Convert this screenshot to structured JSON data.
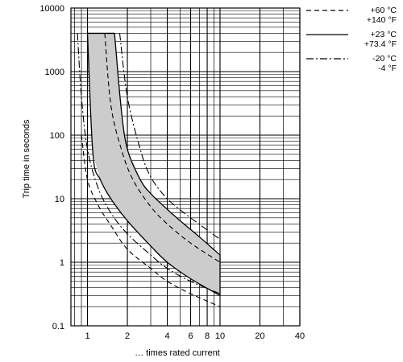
{
  "chart_data": {
    "type": "line",
    "xlabel": "… times rated current",
    "ylabel": "Trip time in seconds",
    "x_scale": "log",
    "y_scale": "log",
    "xlim": [
      0.75,
      40
    ],
    "ylim": [
      0.1,
      10000
    ],
    "grid": true,
    "x_ticks": [
      {
        "value": 1,
        "label": "1"
      },
      {
        "value": 2,
        "label": "2"
      },
      {
        "value": 4,
        "label": "4"
      },
      {
        "value": 6,
        "label": "6"
      },
      {
        "value": 8,
        "label": "8"
      },
      {
        "value": 10,
        "label": "10"
      },
      {
        "value": 20,
        "label": "20"
      },
      {
        "value": 40,
        "label": "40"
      }
    ],
    "y_ticks": [
      {
        "value": 0.1,
        "label": "0.1"
      },
      {
        "value": 1,
        "label": "1"
      },
      {
        "value": 10,
        "label": "10"
      },
      {
        "value": 100,
        "label": "100"
      },
      {
        "value": 1000,
        "label": "1000"
      },
      {
        "value": 10000,
        "label": "10000"
      }
    ],
    "legend_placement": "right",
    "legend": [
      {
        "style": "dashed",
        "line1": "+60 °C",
        "line2": "+140 °F"
      },
      {
        "style": "solid",
        "line1": "+23 °C",
        "line2": "+73.4 °F"
      },
      {
        "style": "dashdot",
        "line1": "-20 °C",
        "line2": "-4 °F"
      }
    ],
    "band_fill": "#cccccc",
    "series": [
      {
        "style": "solid",
        "role": "band-upper",
        "x": [
          1.6,
          1.8,
          2.0,
          2.5,
          3.0,
          4.0,
          5.0,
          7.0,
          10.0
        ],
        "y": [
          4000,
          250,
          60,
          20,
          12,
          6.8,
          4.5,
          2.5,
          1.3
        ]
      },
      {
        "style": "solid",
        "role": "band-lower",
        "x": [
          1.0,
          1.1,
          1.25,
          1.5,
          2.0,
          3.0,
          4.0,
          6.0,
          10.0
        ],
        "y": [
          4000,
          50,
          20,
          10,
          4.5,
          1.8,
          1.0,
          0.55,
          0.3
        ]
      },
      {
        "style": "solid",
        "role": "band-top",
        "x": [
          1.0,
          1.6
        ],
        "y": [
          4000,
          4000
        ]
      },
      {
        "style": "solid",
        "role": "band-right",
        "x": [
          10.0,
          10.0
        ],
        "y": [
          1.3,
          0.3
        ]
      },
      {
        "style": "dashed",
        "x": [
          1.35,
          1.5,
          1.8,
          2.2,
          3.0,
          4.0,
          6.0,
          10.0
        ],
        "y": [
          4000,
          300,
          60,
          20,
          7.5,
          4.0,
          2.0,
          1.0
        ]
      },
      {
        "style": "dashed",
        "x": [
          0.9,
          1.0,
          1.2,
          1.5,
          2.0,
          3.0,
          4.0,
          6.0,
          10.0
        ],
        "y": [
          100,
          20,
          8,
          3.8,
          1.6,
          0.8,
          0.5,
          0.32,
          0.2
        ]
      },
      {
        "style": "dashdot",
        "x": [
          1.75,
          2.0,
          2.5,
          3.0,
          4.0,
          6.0,
          10.0
        ],
        "y": [
          4000,
          400,
          60,
          22,
          10,
          5,
          2.3
        ]
      },
      {
        "style": "dashdot",
        "x": [
          0.84,
          0.9,
          1.0,
          1.2,
          1.5,
          2.0,
          3.0,
          4.0,
          6.0,
          10.0
        ],
        "y": [
          4000,
          400,
          60,
          15,
          6,
          2.8,
          1.3,
          0.8,
          0.5,
          0.32
        ]
      }
    ]
  }
}
